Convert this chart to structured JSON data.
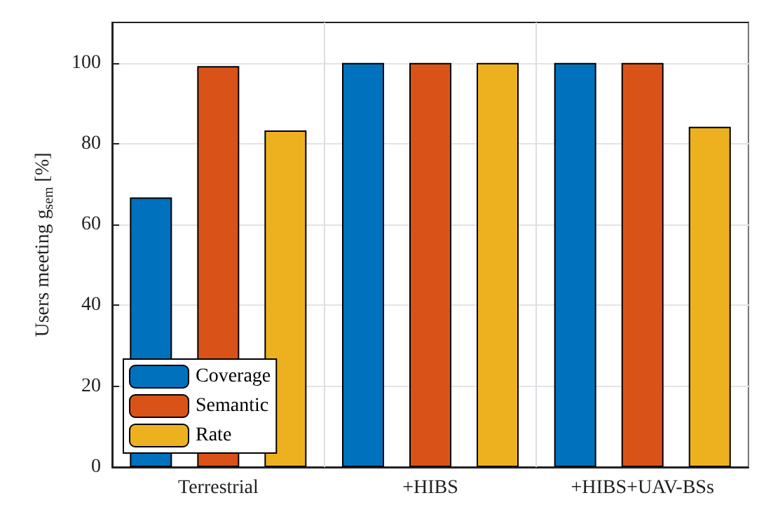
{
  "chart_data": {
    "type": "bar",
    "ylabel": "Users meeting g$_{sem}$ [%]",
    "categories": [
      "Terrestrial",
      "+HIBS",
      "+HIBS+UAV-BSs"
    ],
    "series": [
      {
        "name": "Coverage",
        "color": "#0072bd",
        "values": [
          66.7,
          100,
          100
        ]
      },
      {
        "name": "Semantic",
        "color": "#d95319",
        "values": [
          99.2,
          100,
          100
        ]
      },
      {
        "name": "Rate",
        "color": "#edb120",
        "values": [
          83.3,
          100,
          84.2
        ]
      }
    ],
    "ylim": [
      0,
      110
    ],
    "yticks": [
      0,
      20,
      40,
      60,
      80,
      100
    ],
    "grid": true,
    "legend": "bottom left"
  }
}
